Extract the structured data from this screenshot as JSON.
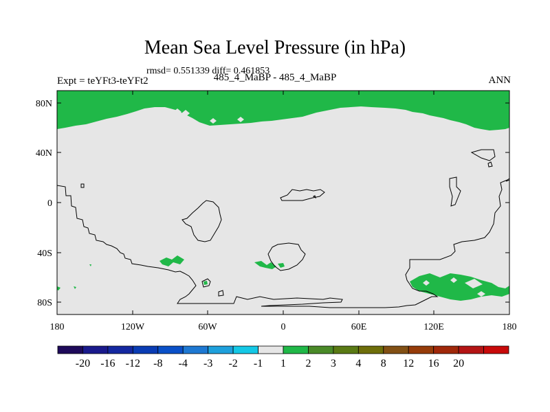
{
  "title": "Mean Sea Level Pressure (in hPa)",
  "stats": "rmsd= 0.551339 diff= 0.461853",
  "experiment": "Expt = teYFt3-teYFt2",
  "subtitle": "485_4_MaBP - 485_4_MaBP",
  "season": "ANN",
  "colors": {
    "background_field": "#e6e6e6",
    "positive_anomaly": "#20b848",
    "coastline": "#000000"
  },
  "chart_data": {
    "type": "heatmap",
    "map_type": "difference field (cylindrical equidistant)",
    "title": "Mean Sea Level Pressure (in hPa)",
    "xlim": [
      -180,
      180
    ],
    "ylim": [
      -90,
      90
    ],
    "x_ticks": [
      -180,
      -120,
      -60,
      0,
      60,
      120,
      180
    ],
    "x_tick_labels": [
      "180",
      "120W",
      "60W",
      "0",
      "60E",
      "120E",
      "180"
    ],
    "y_ticks": [
      80,
      40,
      0,
      -40,
      -80
    ],
    "y_tick_labels": [
      "80N",
      "40N",
      "0",
      "40S",
      "80S"
    ],
    "colorbar": {
      "colors": [
        "#1e0a5a",
        "#1a1a8c",
        "#1428a0",
        "#0a3cb4",
        "#0a50c8",
        "#1e78d2",
        "#1ea0dc",
        "#14c8e6",
        "#e6e6e6",
        "#20b848",
        "#4a8a28",
        "#5a7a14",
        "#6e6e0a",
        "#825014",
        "#963c0a",
        "#a0280a",
        "#b41414",
        "#c80a0a"
      ],
      "labels": [
        "-20",
        "-16",
        "-12",
        "-8",
        "-4",
        "-3",
        "-2",
        "-1",
        "1",
        "2",
        "3",
        "4",
        "8",
        "12",
        "16",
        "20"
      ]
    },
    "regions_shaded_1_to_2_hPa": [
      "Arctic band poleward of ~57N-75N",
      "small patch near 90W 45S",
      "small patches near 20W-0 50S",
      "Southern Ocean patch 110E-180 65S-75S"
    ]
  }
}
